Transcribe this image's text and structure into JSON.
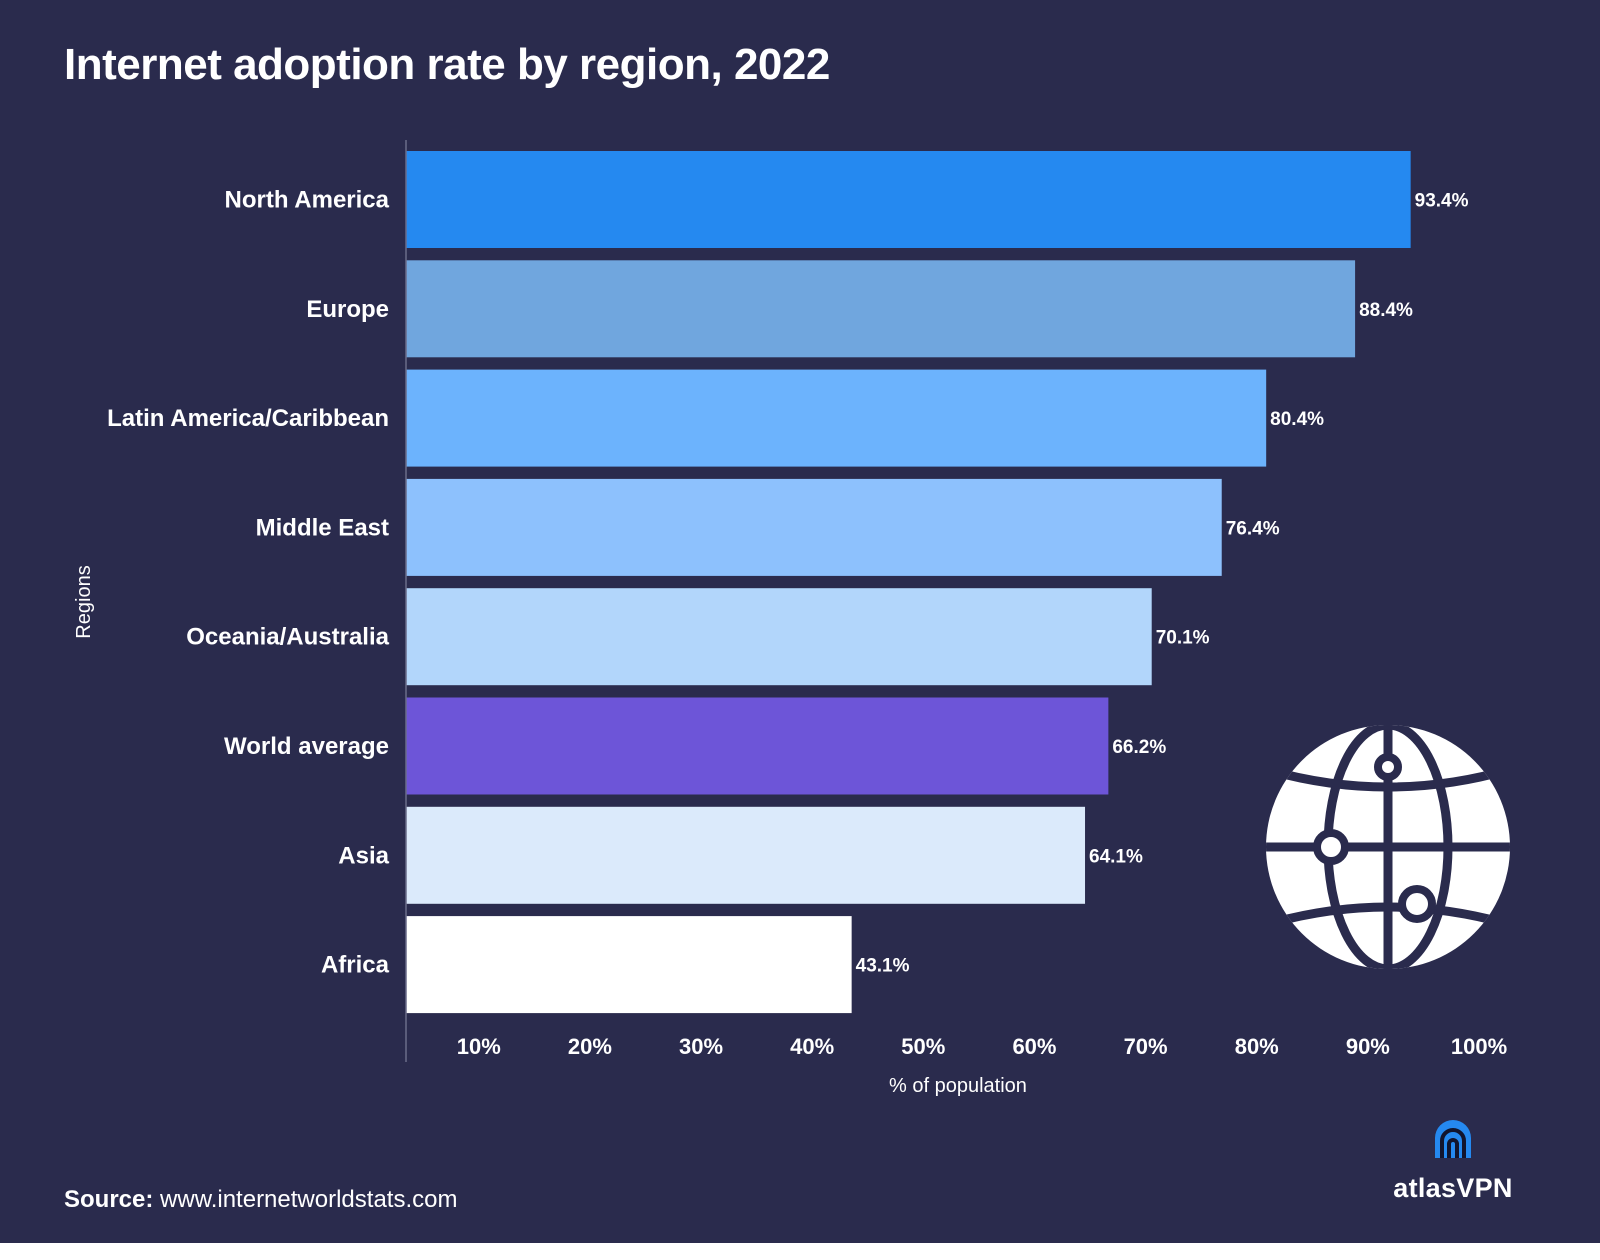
{
  "header": {
    "title": "Internet adoption rate by region, 2022"
  },
  "chart_data": {
    "type": "bar",
    "orientation": "horizontal",
    "title": "Internet adoption rate by region, 2022",
    "xlabel": "% of population",
    "ylabel": "Regions",
    "xlim": [
      3,
      100
    ],
    "xticks": [
      "10%",
      "20%",
      "30%",
      "40%",
      "50%",
      "60%",
      "70%",
      "80%",
      "90%",
      "100%"
    ],
    "xtick_values": [
      10,
      20,
      30,
      40,
      50,
      60,
      70,
      80,
      90,
      100
    ],
    "categories": [
      "North America",
      "Europe",
      "Latin America/Caribbean",
      "Middle East",
      "Oceania/Australia",
      "World average",
      "Asia",
      "Africa"
    ],
    "values": [
      93.4,
      88.4,
      80.4,
      76.4,
      70.1,
      66.2,
      64.1,
      43.1
    ],
    "value_labels": [
      "93.4%",
      "88.4%",
      "80.4%",
      "76.4%",
      "70.1%",
      "66.2%",
      "64.1%",
      "43.1%"
    ],
    "colors": [
      "#2589f0",
      "#70a6de",
      "#6cb3fd",
      "#8dc1fd",
      "#b2d6fb",
      "#6d55d8",
      "#dbeafb",
      "#ffffff"
    ]
  },
  "footer": {
    "source_label": "Source:",
    "source_url": "www.internetworldstats.com",
    "brand": "atlasVPN",
    "brand_icon": "atlasvpn-logo-icon",
    "decorative_icon": "globe-network-icon"
  },
  "colors": {
    "background": "#2a2b4d",
    "text": "#ffffff",
    "brand_accent": "#2589f0"
  }
}
